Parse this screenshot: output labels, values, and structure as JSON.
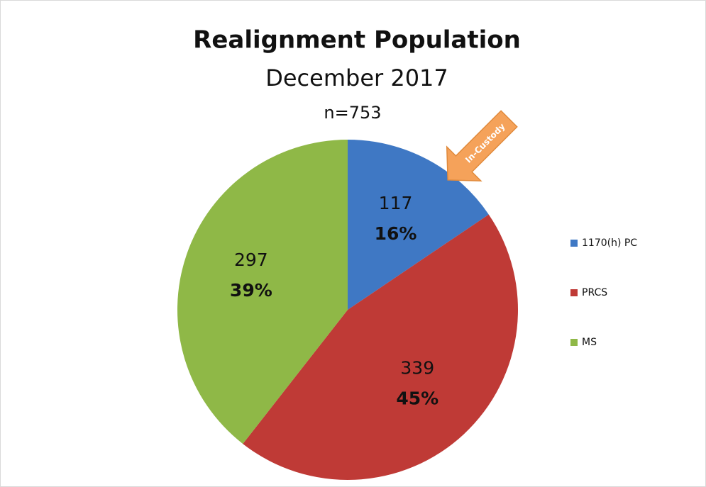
{
  "chart_data": {
    "type": "pie",
    "title": "Realignment Population",
    "subtitle": "December 2017",
    "note": "n=753",
    "annotation": "In-Custody",
    "categories": [
      "1170(h) PC",
      "PRCS",
      "MS"
    ],
    "values": [
      117,
      339,
      297
    ],
    "percent_labels": [
      "16%",
      "45%",
      "39%"
    ],
    "colors": [
      "#3f78c4",
      "#bf3a36",
      "#8fb847"
    ],
    "legend": "right"
  }
}
